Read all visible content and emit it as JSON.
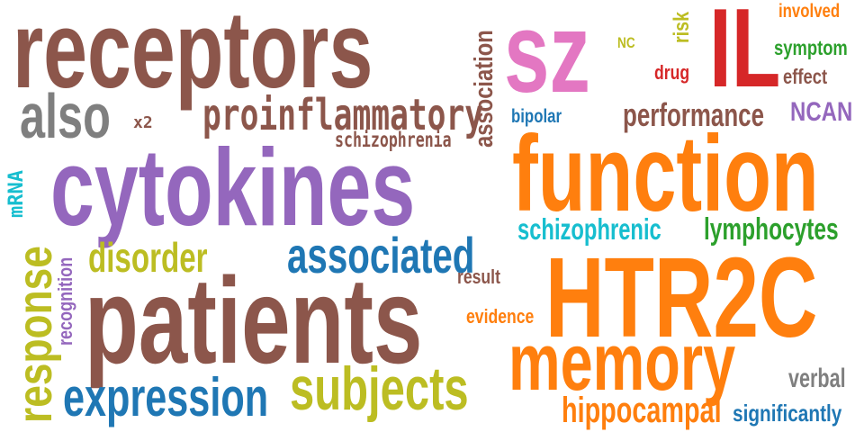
{
  "colors": {
    "brown": "#8c564b",
    "purple": "#9467bd",
    "orange": "#ff7f0e",
    "pink": "#e377c2",
    "red": "#d62728",
    "green": "#2ca02c",
    "blue": "#1f77b4",
    "gray": "#7f7f7f",
    "olive": "#bcbd22",
    "cyan": "#17becf"
  },
  "words": {
    "receptors": "receptors",
    "sz": "sz",
    "il": "IL",
    "involved": "involved",
    "symptom": "symptom",
    "effect": "effect",
    "drug": "drug",
    "risk": "risk",
    "nc": "NC",
    "association": "association",
    "also": "also",
    "x2": "x2",
    "proinflammatory": "proinflammatory",
    "schizophrenia": "schizophrenia",
    "bipolar": "bipolar",
    "performance": "performance",
    "ncan": "NCAN",
    "mrna": "mRNA",
    "cytokines": "cytokines",
    "function": "function",
    "schizophrenic": "schizophrenic",
    "lymphocytes": "lymphocytes",
    "response": "response",
    "recognition": "recognition",
    "disorder": "disorder",
    "associated": "associated",
    "result": "result",
    "patients": "patients",
    "htr2c": "HTR2C",
    "evidence": "evidence",
    "memory": "memory",
    "verbal": "verbal",
    "expression": "expression",
    "subjects": "subjects",
    "hippocampal": "hippocampal",
    "significantly": "significantly"
  }
}
